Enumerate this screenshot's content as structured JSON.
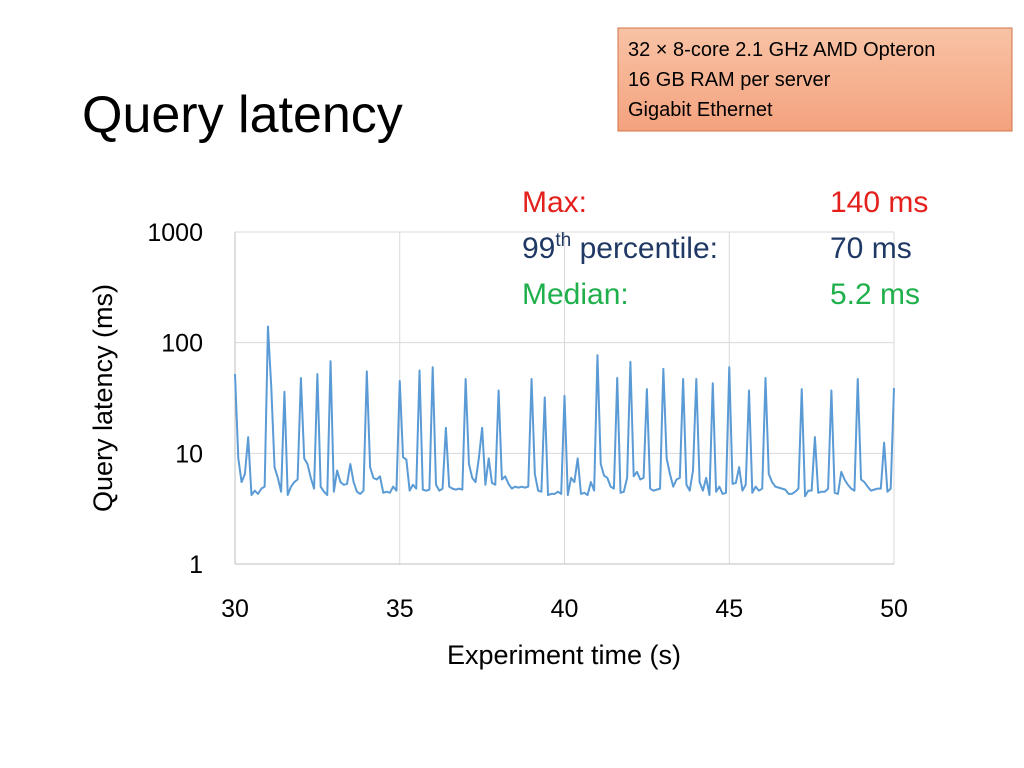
{
  "chart_data": {
    "type": "line",
    "title": "Query latency",
    "info_box": [
      "32 × 8-core 2.1 GHz AMD Opteron",
      "16 GB RAM per server",
      "Gigabit Ethernet"
    ],
    "annotations": [
      {
        "label": "Max:",
        "value": "140 ms",
        "color": "#e3201b"
      },
      {
        "label": "99",
        "sup": "th",
        "label_rest": " percentile:",
        "value": "70 ms",
        "color": "#1f3864"
      },
      {
        "label": "Median:",
        "value": "5.2 ms",
        "color": "#1fb04b"
      }
    ],
    "xlabel": "Experiment time (s)",
    "ylabel": "Query latency (ms)",
    "x": [
      30,
      30.1,
      30.2,
      30.3,
      30.4,
      30.5,
      30.6,
      30.7,
      30.8,
      30.9,
      31,
      31.1,
      31.2,
      31.3,
      31.4,
      31.5,
      31.6,
      31.7,
      31.8,
      31.9,
      32,
      32.1,
      32.2,
      32.3,
      32.4,
      32.5,
      32.6,
      32.7,
      32.8,
      32.9,
      33,
      33.1,
      33.2,
      33.3,
      33.4,
      33.5,
      33.6,
      33.7,
      33.8,
      33.9,
      34,
      34.1,
      34.2,
      34.3,
      34.4,
      34.5,
      34.6,
      34.7,
      34.8,
      34.9,
      35,
      35.1,
      35.2,
      35.3,
      35.4,
      35.5,
      35.6,
      35.7,
      35.8,
      35.9,
      36,
      36.1,
      36.2,
      36.3,
      36.4,
      36.5,
      36.6,
      36.7,
      36.8,
      36.9,
      37,
      37.1,
      37.2,
      37.3,
      37.4,
      37.5,
      37.6,
      37.7,
      37.8,
      37.9,
      38,
      38.1,
      38.2,
      38.3,
      38.4,
      38.5,
      38.6,
      38.7,
      38.8,
      38.9,
      39,
      39.1,
      39.2,
      39.3,
      39.4,
      39.5,
      39.6,
      39.7,
      39.8,
      39.9,
      40,
      40.1,
      40.2,
      40.3,
      40.4,
      40.5,
      40.6,
      40.7,
      40.8,
      40.9,
      41,
      41.1,
      41.2,
      41.3,
      41.4,
      41.5,
      41.6,
      41.7,
      41.8,
      41.9,
      42,
      42.1,
      42.2,
      42.3,
      42.4,
      42.5,
      42.6,
      42.7,
      42.8,
      42.9,
      43,
      43.1,
      43.2,
      43.3,
      43.4,
      43.5,
      43.6,
      43.7,
      43.8,
      43.9,
      44,
      44.1,
      44.2,
      44.3,
      44.4,
      44.5,
      44.6,
      44.7,
      44.8,
      44.9,
      45,
      45.1,
      45.2,
      45.3,
      45.4,
      45.5,
      45.6,
      45.7,
      45.8,
      45.9,
      46,
      46.1,
      46.2,
      46.3,
      46.4,
      46.5,
      46.6,
      46.7,
      46.8,
      46.9,
      47,
      47.1,
      47.2,
      47.3,
      47.4,
      47.5,
      47.6,
      47.7,
      47.8,
      47.9,
      48,
      48.1,
      48.2,
      48.3,
      48.4,
      48.5,
      48.6,
      48.7,
      48.8,
      48.9,
      49,
      49.1,
      49.2,
      49.3,
      49.4,
      49.5,
      49.6,
      49.7,
      49.8,
      49.9,
      50
    ],
    "series": [
      {
        "name": "Query latency",
        "color": "#5b9bd5",
        "values": [
          52,
          9,
          5.5,
          6.5,
          14,
          4.2,
          4.6,
          4.3,
          4.8,
          5,
          140,
          40,
          7.5,
          6,
          4.5,
          36,
          4.2,
          5,
          5.5,
          5.8,
          48,
          9,
          8,
          6,
          4.8,
          52,
          5,
          4.5,
          4.2,
          68,
          4.5,
          7,
          5.5,
          5.2,
          5.3,
          8,
          5.5,
          4.5,
          4.3,
          4.6,
          55,
          7.5,
          6,
          5.8,
          6.2,
          4.4,
          4.5,
          4.4,
          5,
          4.6,
          45,
          9.2,
          8.8,
          4.6,
          5.2,
          4.8,
          56,
          4.7,
          4.6,
          4.7,
          60,
          5.2,
          4.6,
          4.8,
          17,
          5,
          4.8,
          4.7,
          4.8,
          4.7,
          47,
          8,
          6,
          5.5,
          9,
          17,
          5.2,
          9,
          5.4,
          5.2,
          37,
          5.8,
          6.2,
          5.3,
          4.8,
          5,
          4.9,
          5,
          4.9,
          5,
          47,
          6.5,
          4.6,
          4.5,
          32,
          4.2,
          4.3,
          4.3,
          4.5,
          4.3,
          33,
          4.2,
          6,
          5.5,
          9,
          4.3,
          4.4,
          4.2,
          5.5,
          4.6,
          77,
          8,
          6.3,
          6,
          5,
          4.8,
          48,
          4.4,
          4.5,
          6,
          67,
          6.2,
          6.8,
          5.8,
          6,
          38,
          4.8,
          4.6,
          4.7,
          4.8,
          58,
          9,
          6.5,
          5,
          5.8,
          6,
          47,
          5.2,
          4.6,
          7,
          47,
          5.5,
          4.6,
          6,
          4.2,
          43,
          4.5,
          5,
          4.3,
          4.4,
          60,
          5.3,
          5.4,
          7.5,
          4.6,
          5.2,
          37,
          4.4,
          5,
          4.6,
          4.8,
          48,
          6.5,
          5.5,
          5,
          4.9,
          4.8,
          4.7,
          4.3,
          4.3,
          4.5,
          4.8,
          38,
          4.1,
          4.6,
          4.6,
          14,
          4.4,
          4.5,
          4.5,
          4.8,
          37,
          4.4,
          4.3,
          6.8,
          5.8,
          5.2,
          4.8,
          4.6,
          47,
          5.8,
          5.5,
          5,
          4.6,
          4.7,
          4.8,
          4.8,
          12.5,
          4.5,
          4.8,
          39
        ]
      }
    ],
    "xlim": [
      30,
      50
    ],
    "xticks": [
      30,
      35,
      40,
      45,
      50
    ],
    "ylim": [
      1,
      1000
    ],
    "yticks": [
      1,
      10,
      100,
      1000
    ],
    "ylog": true,
    "grid": true
  }
}
